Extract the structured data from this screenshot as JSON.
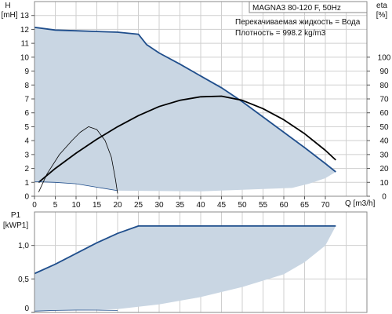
{
  "chart_data": [
    {
      "type": "line",
      "title": "MAGNA3 80-120 F, 50Hz",
      "annotations": [
        "Перекачиваемая жидкость = Вода",
        "Плотность = 998.2 kg/m3"
      ],
      "xlabel": "Q [m3/h]",
      "ylabel": "H\n[mH]",
      "y2label": "eta\n[%]",
      "xlim": [
        0,
        80
      ],
      "ylim": [
        0,
        14
      ],
      "y2lim": [
        0,
        140
      ],
      "xticks": [
        0,
        5,
        10,
        15,
        20,
        25,
        30,
        35,
        40,
        45,
        50,
        55,
        60,
        65,
        70
      ],
      "yticks": [
        0,
        1,
        2,
        3,
        4,
        5,
        6,
        7,
        8,
        9,
        10,
        11,
        12,
        13
      ],
      "y2ticks": [
        0,
        10,
        20,
        30,
        40,
        50,
        60,
        70,
        80,
        90,
        100
      ],
      "grid": true,
      "colors": {
        "area": "#c9d6e3",
        "max_curve": "#1f4e8c",
        "eta": "#000000",
        "grid": "#cfcfcf"
      },
      "area": {
        "upper": [
          [
            0,
            12.15
          ],
          [
            5,
            11.95
          ],
          [
            10,
            11.9
          ],
          [
            15,
            11.85
          ],
          [
            20,
            11.8
          ],
          [
            25,
            11.65
          ],
          [
            27,
            10.9
          ],
          [
            30,
            10.3
          ],
          [
            35,
            9.5
          ],
          [
            40,
            8.65
          ],
          [
            45,
            7.8
          ],
          [
            50,
            6.8
          ],
          [
            55,
            5.7
          ],
          [
            60,
            4.6
          ],
          [
            65,
            3.5
          ],
          [
            70,
            2.35
          ],
          [
            72.5,
            1.75
          ]
        ],
        "lower": [
          [
            0,
            1.05
          ],
          [
            5,
            1.0
          ],
          [
            10,
            0.9
          ],
          [
            15,
            0.65
          ],
          [
            20,
            0.4
          ],
          [
            40,
            0.35
          ],
          [
            62,
            0.6
          ],
          [
            66,
            0.9
          ],
          [
            70,
            1.3
          ],
          [
            72.5,
            1.75
          ]
        ]
      },
      "series": [
        {
          "role": "max-head",
          "style": "heavy",
          "color": "#1f4e8c",
          "axis": "y",
          "points": [
            [
              0,
              12.15
            ],
            [
              5,
              11.95
            ],
            [
              10,
              11.9
            ],
            [
              15,
              11.85
            ],
            [
              20,
              11.8
            ],
            [
              25,
              11.65
            ],
            [
              27,
              10.9
            ],
            [
              30,
              10.3
            ],
            [
              35,
              9.5
            ],
            [
              40,
              8.65
            ],
            [
              45,
              7.8
            ],
            [
              50,
              6.8
            ],
            [
              55,
              5.7
            ],
            [
              60,
              4.6
            ],
            [
              65,
              3.5
            ],
            [
              70,
              2.35
            ],
            [
              72.5,
              1.75
            ]
          ]
        },
        {
          "role": "eta-max",
          "style": "heavy",
          "color": "#000000",
          "axis": "y2",
          "points": [
            [
              1,
              10
            ],
            [
              5,
              20
            ],
            [
              10,
              31
            ],
            [
              15,
              41
            ],
            [
              20,
              50
            ],
            [
              25,
              58
            ],
            [
              30,
              64.5
            ],
            [
              35,
              69
            ],
            [
              40,
              71.5
            ],
            [
              45,
              72
            ],
            [
              50,
              69
            ],
            [
              55,
              63
            ],
            [
              60,
              55
            ],
            [
              65,
              45
            ],
            [
              70,
              33
            ],
            [
              72.5,
              26
            ]
          ]
        },
        {
          "role": "min-head",
          "style": "thin",
          "color": "#1f4e8c",
          "axis": "y",
          "points": [
            [
              0,
              1.05
            ],
            [
              5,
              1.0
            ],
            [
              10,
              0.9
            ],
            [
              15,
              0.65
            ],
            [
              20,
              0.4
            ]
          ]
        },
        {
          "role": "eta-min",
          "style": "thin",
          "color": "#000000",
          "axis": "y2",
          "points": [
            [
              1,
              3
            ],
            [
              3,
              16
            ],
            [
              6,
              30
            ],
            [
              9,
              40
            ],
            [
              11,
              46
            ],
            [
              13,
              50
            ],
            [
              15,
              48
            ],
            [
              17,
              40
            ],
            [
              18.5,
              28
            ],
            [
              19.5,
              12
            ],
            [
              20,
              2
            ]
          ]
        }
      ]
    },
    {
      "type": "line",
      "ylabel": "P1\n[kWP1]",
      "xlim": [
        0,
        80
      ],
      "ylim": [
        0,
        1.5
      ],
      "yticks": [
        0,
        0.5,
        1.0
      ],
      "ytick_labels": [
        "0",
        "0,5",
        "1,0"
      ],
      "grid": true,
      "colors": {
        "area": "#c9d6e3",
        "max_curve": "#1f4e8c"
      },
      "area": {
        "upper": [
          [
            0,
            0.58
          ],
          [
            5,
            0.72
          ],
          [
            10,
            0.88
          ],
          [
            15,
            1.04
          ],
          [
            20,
            1.18
          ],
          [
            25,
            1.29
          ],
          [
            72.5,
            1.29
          ]
        ],
        "lower": [
          [
            0,
            0.02
          ],
          [
            20,
            0.05
          ],
          [
            30,
            0.12
          ],
          [
            40,
            0.23
          ],
          [
            50,
            0.38
          ],
          [
            60,
            0.57
          ],
          [
            65,
            0.75
          ],
          [
            70,
            1.0
          ],
          [
            72.5,
            1.29
          ]
        ]
      },
      "series": [
        {
          "role": "max-power",
          "style": "heavy",
          "color": "#1f4e8c",
          "points": [
            [
              0,
              0.58
            ],
            [
              5,
              0.72
            ],
            [
              10,
              0.88
            ],
            [
              15,
              1.04
            ],
            [
              20,
              1.18
            ],
            [
              25,
              1.29
            ],
            [
              72.5,
              1.29
            ]
          ]
        },
        {
          "role": "min-power",
          "style": "thin",
          "color": "#1f4e8c",
          "points": [
            [
              0,
              0.02
            ],
            [
              5,
              0.03
            ],
            [
              10,
              0.035
            ],
            [
              15,
              0.035
            ],
            [
              20,
              0.03
            ]
          ]
        }
      ]
    }
  ]
}
